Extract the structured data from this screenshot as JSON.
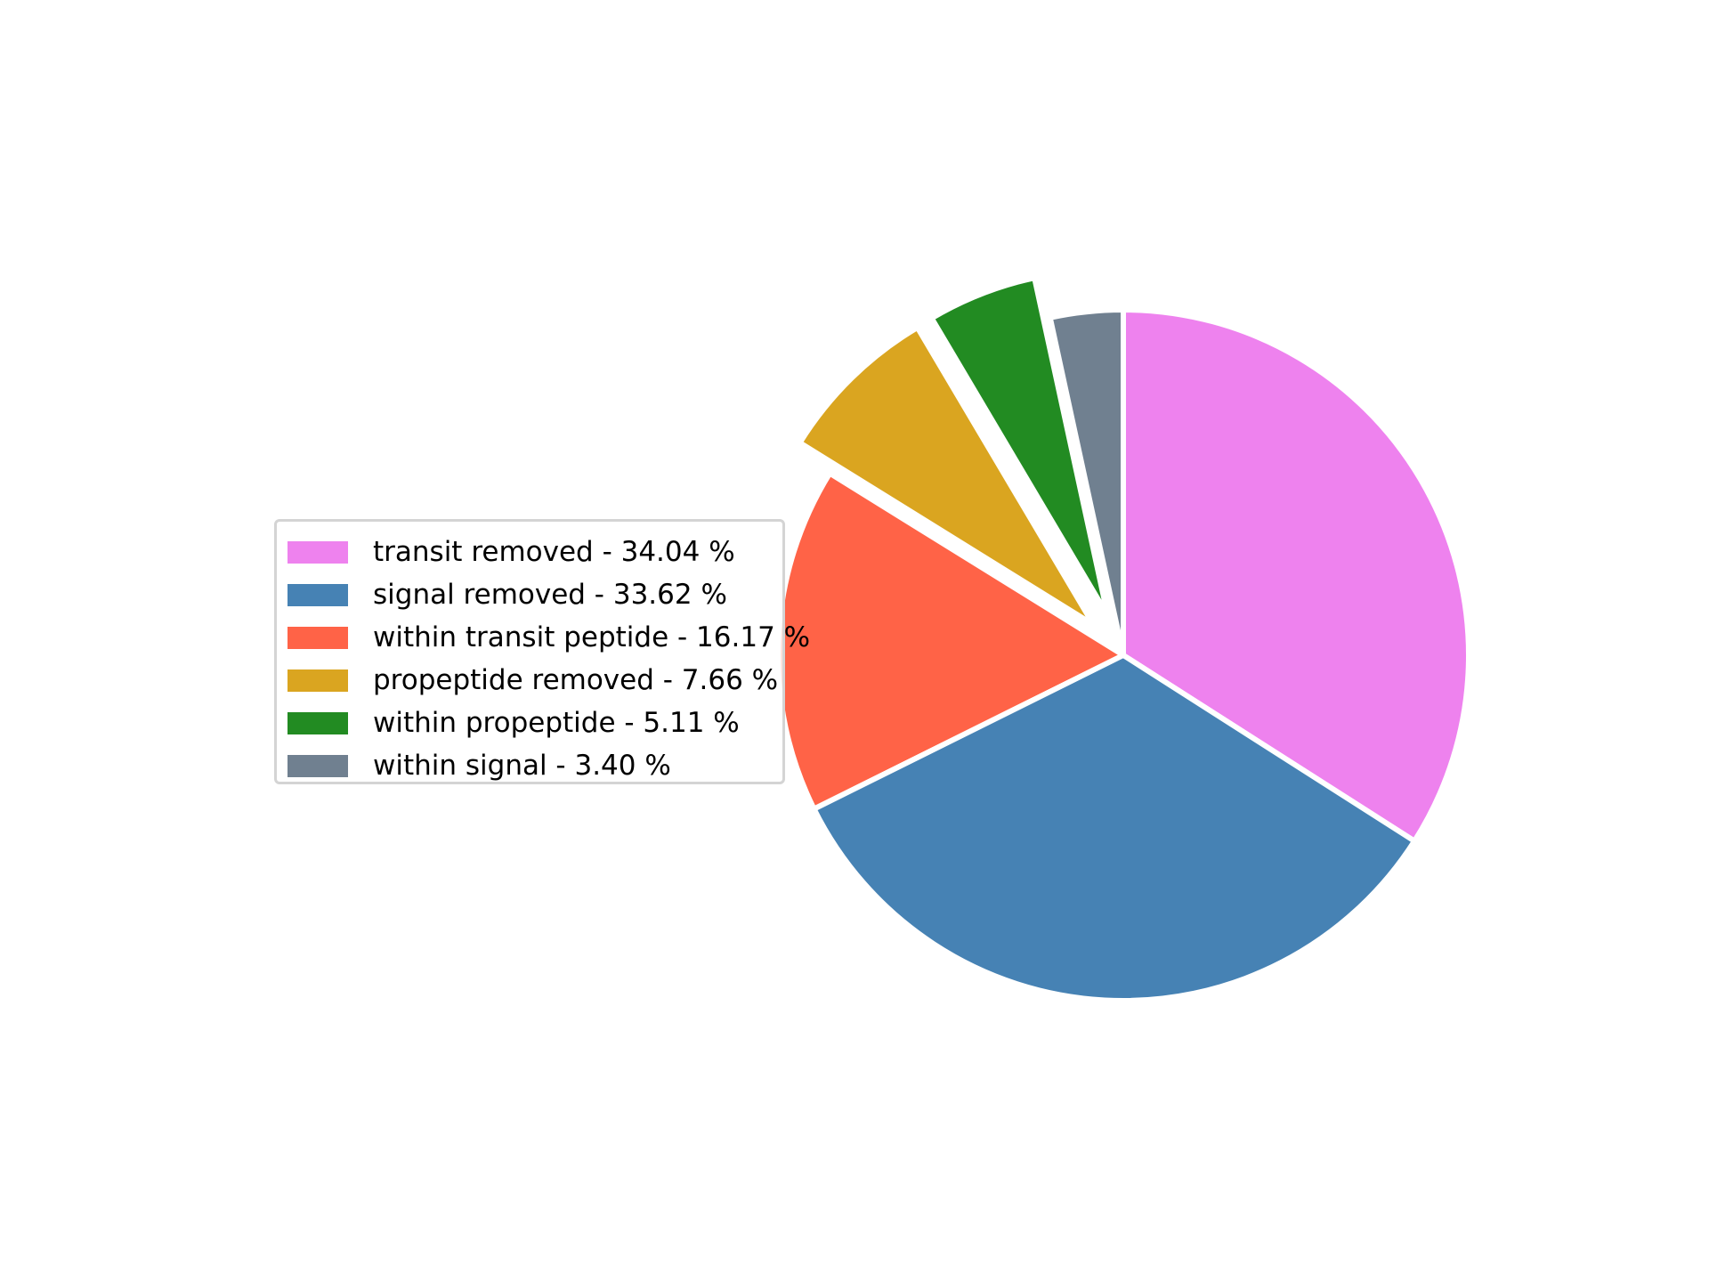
{
  "chart_data": {
    "type": "pie",
    "title": "",
    "start_angle_deg": 90,
    "direction": "clockwise",
    "legend_placement": "left",
    "slices": [
      {
        "label": "transit removed - 34.04 %",
        "value": 34.04,
        "color": "#ee82ee",
        "exploded": false
      },
      {
        "label": "signal removed - 33.62 %",
        "value": 33.62,
        "color": "#4682b4",
        "exploded": false
      },
      {
        "label": "within transit peptide - 16.17 %",
        "value": 16.17,
        "color": "#ff6347",
        "exploded": false
      },
      {
        "label": "propeptide removed - 7.66 %",
        "value": 7.66,
        "color": "#daa520",
        "exploded": true
      },
      {
        "label": "within propeptide - 5.11 %",
        "value": 5.11,
        "color": "#228b22",
        "exploded": true
      },
      {
        "label": "within signal - 3.40 %",
        "value": 3.4,
        "color": "#708090",
        "exploded": false
      }
    ],
    "draw_order": [
      "within transit peptide - 16.17 %",
      "transit removed - 34.04 %",
      "within propeptide - 5.11 %",
      "within signal - 3.40 %",
      "propeptide removed - 7.66 %",
      "signal removed - 33.62 %"
    ]
  }
}
